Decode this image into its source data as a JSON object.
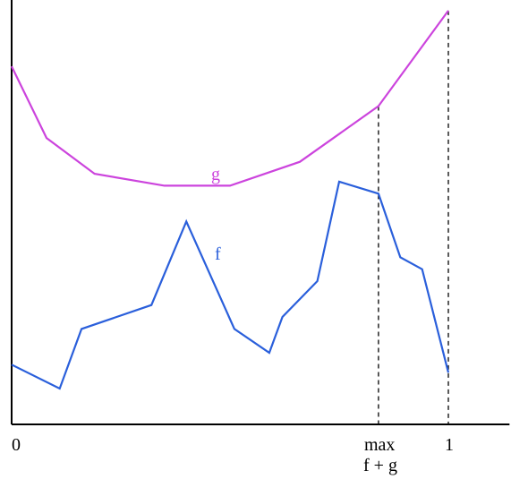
{
  "chart_data": {
    "type": "line",
    "title": "",
    "xlabel": "",
    "ylabel": "",
    "xlim": [
      0,
      1.14
    ],
    "ylim": [
      0,
      1
    ],
    "grid": false,
    "series": [
      {
        "name": "g",
        "color": "#cc44dd",
        "points": [
          [
            0.0,
            0.9
          ],
          [
            0.08,
            0.72
          ],
          [
            0.19,
            0.63
          ],
          [
            0.35,
            0.6
          ],
          [
            0.5,
            0.6
          ],
          [
            0.66,
            0.66
          ],
          [
            0.84,
            0.8
          ],
          [
            1.0,
            1.04
          ]
        ]
      },
      {
        "name": "f",
        "color": "#2a5fdb",
        "points": [
          [
            0.0,
            0.15
          ],
          [
            0.11,
            0.09
          ],
          [
            0.16,
            0.24
          ],
          [
            0.32,
            0.3
          ],
          [
            0.4,
            0.51
          ],
          [
            0.51,
            0.24
          ],
          [
            0.59,
            0.18
          ],
          [
            0.62,
            0.27
          ],
          [
            0.7,
            0.36
          ],
          [
            0.75,
            0.61
          ],
          [
            0.84,
            0.58
          ],
          [
            0.89,
            0.42
          ],
          [
            0.94,
            0.39
          ],
          [
            1.0,
            0.13
          ]
        ]
      }
    ],
    "vlines": [
      0.84,
      1.0
    ],
    "tick_labels": {
      "zero": "0",
      "one": "1",
      "max_line1": "max",
      "max_line2": "f + g"
    }
  }
}
